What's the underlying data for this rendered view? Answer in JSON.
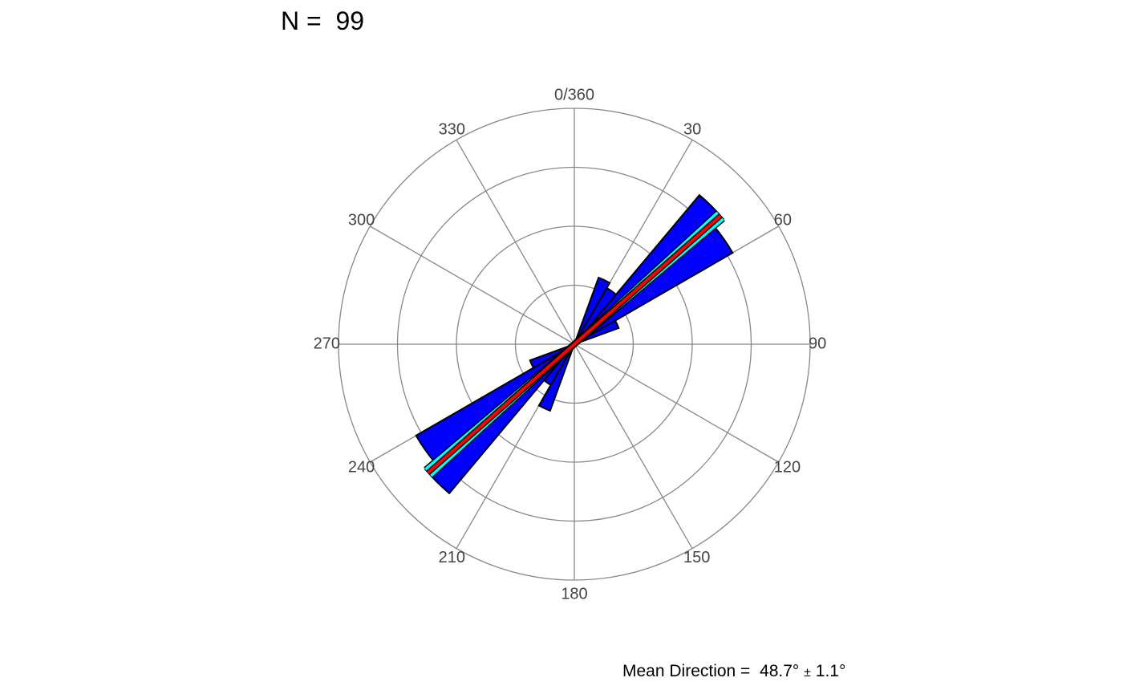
{
  "chart_data": {
    "type": "rose",
    "title_prefix": "N = ",
    "n": 99,
    "angular_axis": {
      "direction": "clockwise",
      "zero": "north",
      "ticks": [
        0,
        30,
        60,
        90,
        120,
        150,
        180,
        210,
        240,
        270,
        300,
        330
      ],
      "tick_labels": [
        "0/360",
        "30",
        "60",
        "90",
        "120",
        "150",
        "180",
        "210",
        "240",
        "270",
        "300",
        "330"
      ]
    },
    "radial_axis": {
      "rings": [
        1,
        2,
        3,
        4
      ],
      "max": 4.0,
      "grid": true
    },
    "bins": [
      {
        "start": 20,
        "end": 30,
        "value": 1.2
      },
      {
        "start": 30,
        "end": 40,
        "value": 1.1
      },
      {
        "start": 40,
        "end": 50,
        "value": 3.3
      },
      {
        "start": 50,
        "end": 60,
        "value": 3.1
      },
      {
        "start": 60,
        "end": 70,
        "value": 0.8
      },
      {
        "start": 200,
        "end": 210,
        "value": 1.2
      },
      {
        "start": 210,
        "end": 220,
        "value": 0.8
      },
      {
        "start": 220,
        "end": 230,
        "value": 3.3
      },
      {
        "start": 230,
        "end": 240,
        "value": 3.1
      },
      {
        "start": 240,
        "end": 250,
        "value": 0.8
      }
    ],
    "mean_direction": {
      "label": "Mean Direction = ",
      "value": "48.7°",
      "pm": "±",
      "error": "1.1°",
      "degrees": 48.7,
      "error_degrees": 1.1,
      "length": 3.3
    },
    "colors": {
      "bars": "#0000ff",
      "bar_edge": "#000000",
      "mean_line": "#ff0000",
      "confidence": "#00ffff",
      "grid": "#888888"
    }
  }
}
